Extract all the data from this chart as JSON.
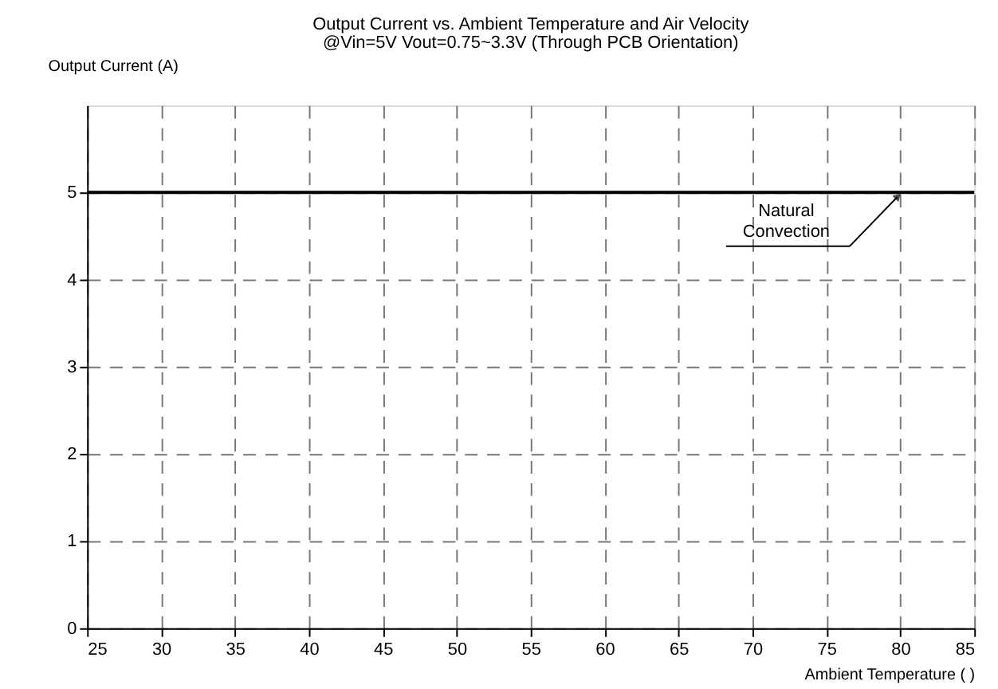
{
  "chart_data": {
    "type": "line",
    "title": "Output Current vs. Ambient Temperature and Air Velocity",
    "subtitle": "@Vin=5V Vout=0.75~3.3V (Through PCB Orientation)",
    "xlabel": "Ambient Temperature (  )",
    "ylabel": "Output Current (A)",
    "x": [
      25,
      85
    ],
    "series": [
      {
        "color": "#000000",
        "values": [
          5,
          5
        ]
      }
    ],
    "xlim": [
      25,
      85
    ],
    "xticks": [
      25,
      30,
      35,
      40,
      45,
      50,
      55,
      60,
      65,
      70,
      75,
      80,
      85
    ],
    "ylim": [
      0,
      6
    ],
    "yticks": [
      0,
      1,
      2,
      3,
      4,
      5
    ],
    "grid": true,
    "line_style": "solid",
    "marker": "none",
    "annotations": [
      {
        "text": "Natural Convection",
        "x": 80,
        "y": 5
      }
    ]
  }
}
